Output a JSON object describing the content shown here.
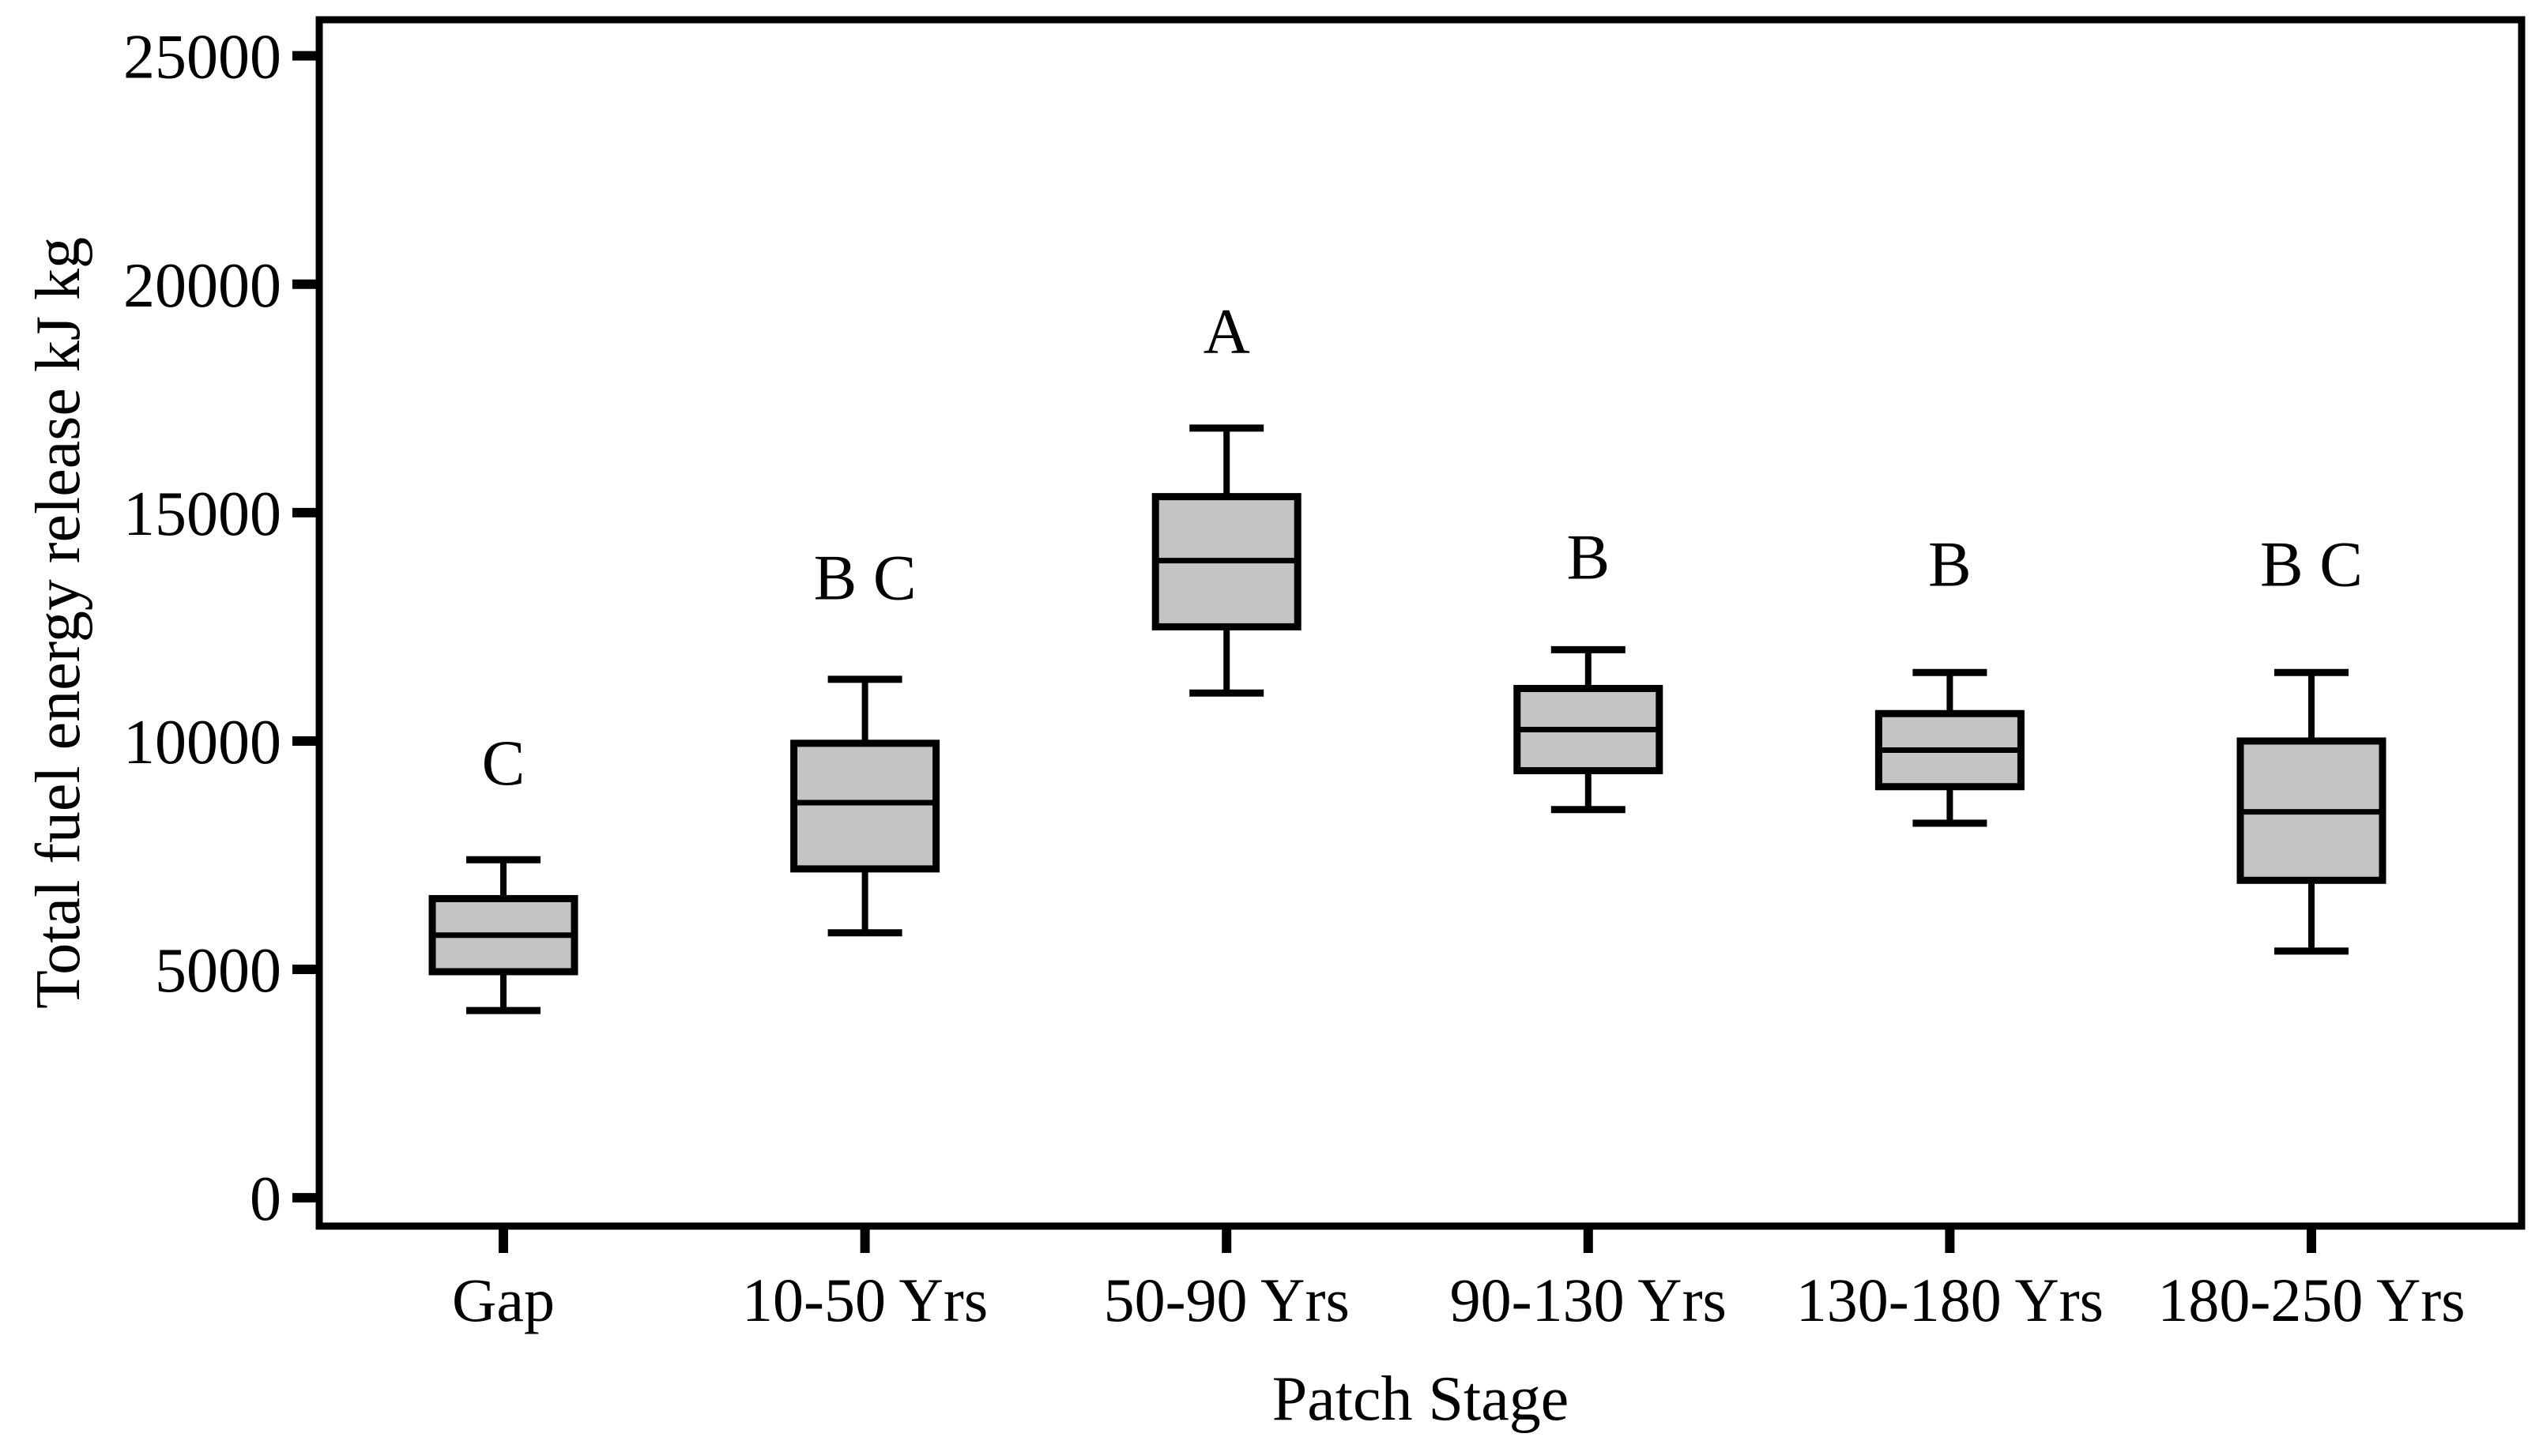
{
  "chart_data": {
    "type": "boxplot",
    "title": "",
    "xlabel": "Patch Stage",
    "ylabel": "Total fuel energy release kJ kg",
    "categories": [
      "Gap",
      "10-50 Yrs",
      "50-90 Yrs",
      "90-130 Yrs",
      "130-180 Yrs",
      "180-250 Yrs"
    ],
    "yticks": [
      0,
      5000,
      10000,
      15000,
      20000,
      25000
    ],
    "ylim": [
      -620,
      25790
    ],
    "grid": false,
    "legend": null,
    "box_fill": "#c4c4c4",
    "stroke_color": "#000000",
    "series": [
      {
        "category": "Gap",
        "whisker_low": 4100,
        "q1": 4950,
        "median": 5750,
        "q3": 6550,
        "whisker_high": 7400,
        "sig_letter": "C",
        "sig_letter_y": 9050
      },
      {
        "category": "10-50 Yrs",
        "whisker_low": 5800,
        "q1": 7200,
        "median": 8650,
        "q3": 9950,
        "whisker_high": 11350,
        "sig_letter": "B C",
        "sig_letter_y": 13100
      },
      {
        "category": "50-90 Yrs",
        "whisker_low": 11050,
        "q1": 12500,
        "median": 13950,
        "q3": 15350,
        "whisker_high": 16850,
        "sig_letter": "A",
        "sig_letter_y": 18500
      },
      {
        "category": "90-130 Yrs",
        "whisker_low": 8500,
        "q1": 9350,
        "median": 10250,
        "q3": 11150,
        "whisker_high": 12000,
        "sig_letter": "B",
        "sig_letter_y": 13550
      },
      {
        "category": "130-180 Yrs",
        "whisker_low": 8200,
        "q1": 9000,
        "median": 9800,
        "q3": 10600,
        "whisker_high": 11500,
        "sig_letter": "B",
        "sig_letter_y": 13400
      },
      {
        "category": "180-250 Yrs",
        "whisker_low": 5400,
        "q1": 6950,
        "median": 8450,
        "q3": 10000,
        "whisker_high": 11500,
        "sig_letter": "B C",
        "sig_letter_y": 13400
      }
    ]
  }
}
